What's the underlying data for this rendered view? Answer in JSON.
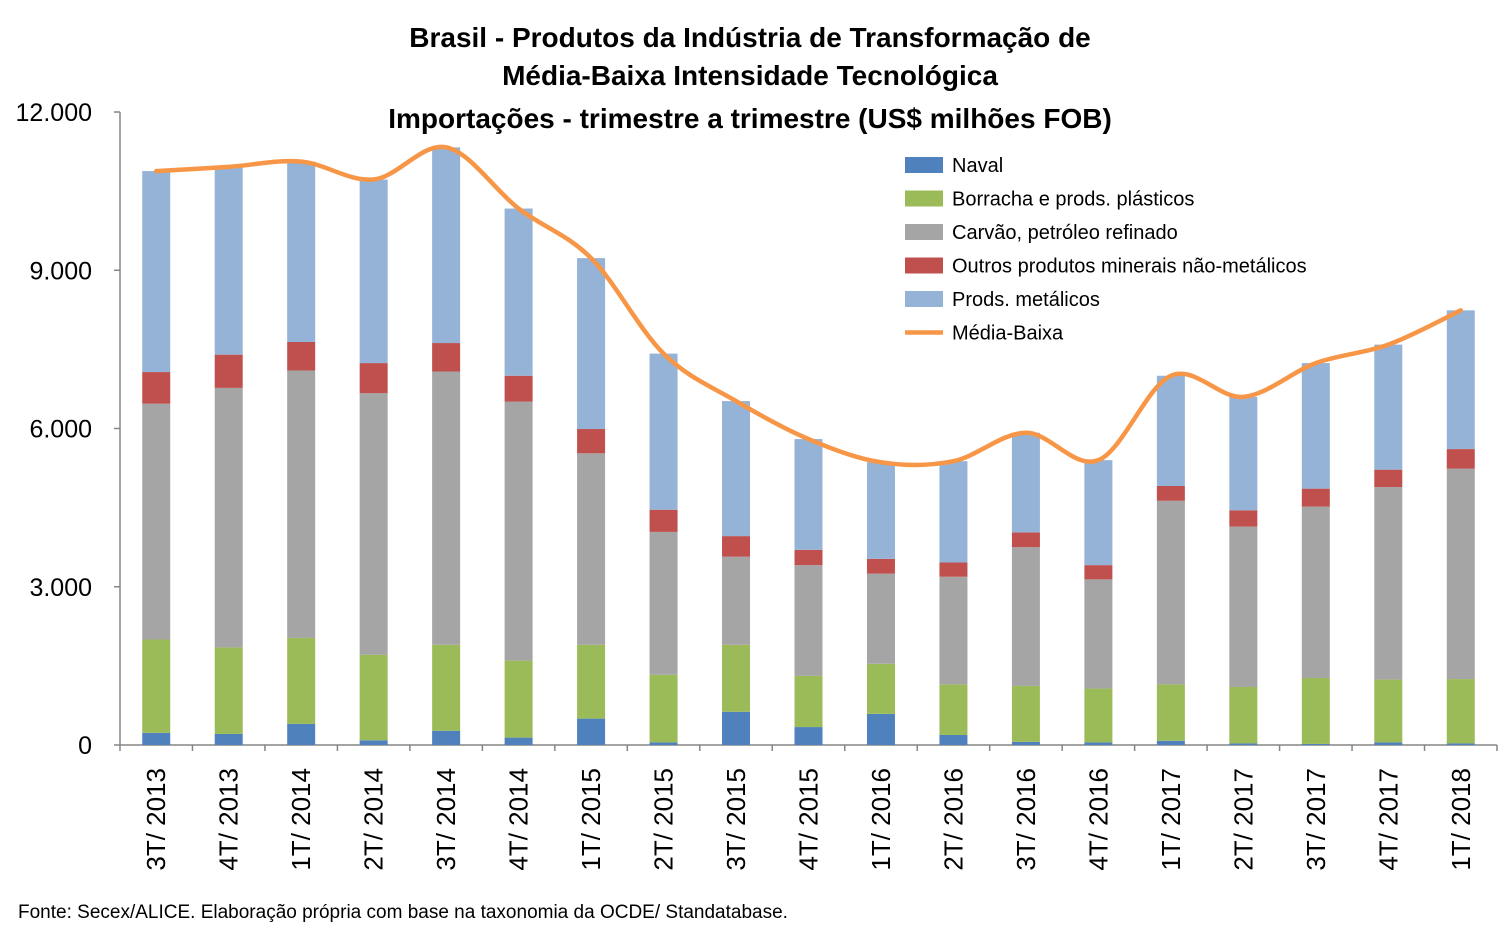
{
  "chart_data": {
    "type": "bar",
    "stacked": true,
    "title": [
      "Brasil - Produtos da Indústria de Transformação de",
      "Média-Baixa Intensidade Tecnológica",
      "Importações - trimestre a trimestre (US$ milhões FOB)"
    ],
    "xlabel": "",
    "ylabel": "",
    "ylim": [
      0,
      12000
    ],
    "yticks": [
      0,
      3000,
      6000,
      9000,
      12000
    ],
    "ytick_labels": [
      "0",
      "3.000",
      "6.000",
      "9.000",
      "12.000"
    ],
    "grid": false,
    "legend_position": "top-right",
    "categories": [
      "3T/ 2013",
      "4T/ 2013",
      "1T/ 2014",
      "2T/ 2014",
      "3T/ 2014",
      "4T/ 2014",
      "1T/ 2015",
      "2T/ 2015",
      "3T/ 2015",
      "4T/ 2015",
      "1T/ 2016",
      "2T/ 2016",
      "3T/ 2016",
      "4T/ 2016",
      "1T/ 2017",
      "2T/ 2017",
      "3T/ 2017",
      "4T/ 2017",
      "1T/ 2018"
    ],
    "series": [
      {
        "name": "Naval",
        "color": "#4f81bd",
        "values": [
          230,
          210,
          400,
          90,
          270,
          140,
          500,
          50,
          630,
          340,
          590,
          190,
          60,
          50,
          80,
          30,
          20,
          50,
          30
        ]
      },
      {
        "name": "Borracha e prods. plásticos",
        "color": "#9bbb59",
        "values": [
          1770,
          1640,
          1630,
          1620,
          1630,
          1460,
          1400,
          1280,
          1270,
          970,
          950,
          960,
          1060,
          1020,
          1070,
          1070,
          1250,
          1190,
          1220
        ]
      },
      {
        "name": "Carvão, petróleo refinado",
        "color": "#a5a5a5",
        "values": [
          4470,
          4920,
          5070,
          4960,
          5180,
          4910,
          3630,
          2710,
          1670,
          2100,
          1710,
          2040,
          2630,
          2070,
          3480,
          3040,
          3250,
          3650,
          3990
        ]
      },
      {
        "name": "Outros produtos minerais não-metálicos",
        "color": "#c0504d",
        "values": [
          600,
          630,
          540,
          570,
          540,
          490,
          460,
          420,
          390,
          290,
          280,
          270,
          280,
          270,
          280,
          310,
          340,
          330,
          370
        ]
      },
      {
        "name": "Prods. metálicos",
        "color": "#95b3d7",
        "values": [
          3810,
          3560,
          3420,
          3480,
          3710,
          3170,
          3240,
          2960,
          2560,
          2100,
          1830,
          1920,
          1890,
          1990,
          2090,
          2150,
          2380,
          2370,
          2630
        ]
      }
    ],
    "line": {
      "name": "Média-Baixa",
      "color": "#f79646",
      "values": [
        10880,
        10960,
        11060,
        10720,
        11330,
        10170,
        9230,
        7420,
        6520,
        5800,
        5360,
        5380,
        5920,
        5400,
        7000,
        6600,
        7240,
        7590,
        8240
      ]
    }
  },
  "footnote": "Fonte: Secex/ALICE. Elaboração própria com base na taxonomia da OCDE/ Standatabase."
}
